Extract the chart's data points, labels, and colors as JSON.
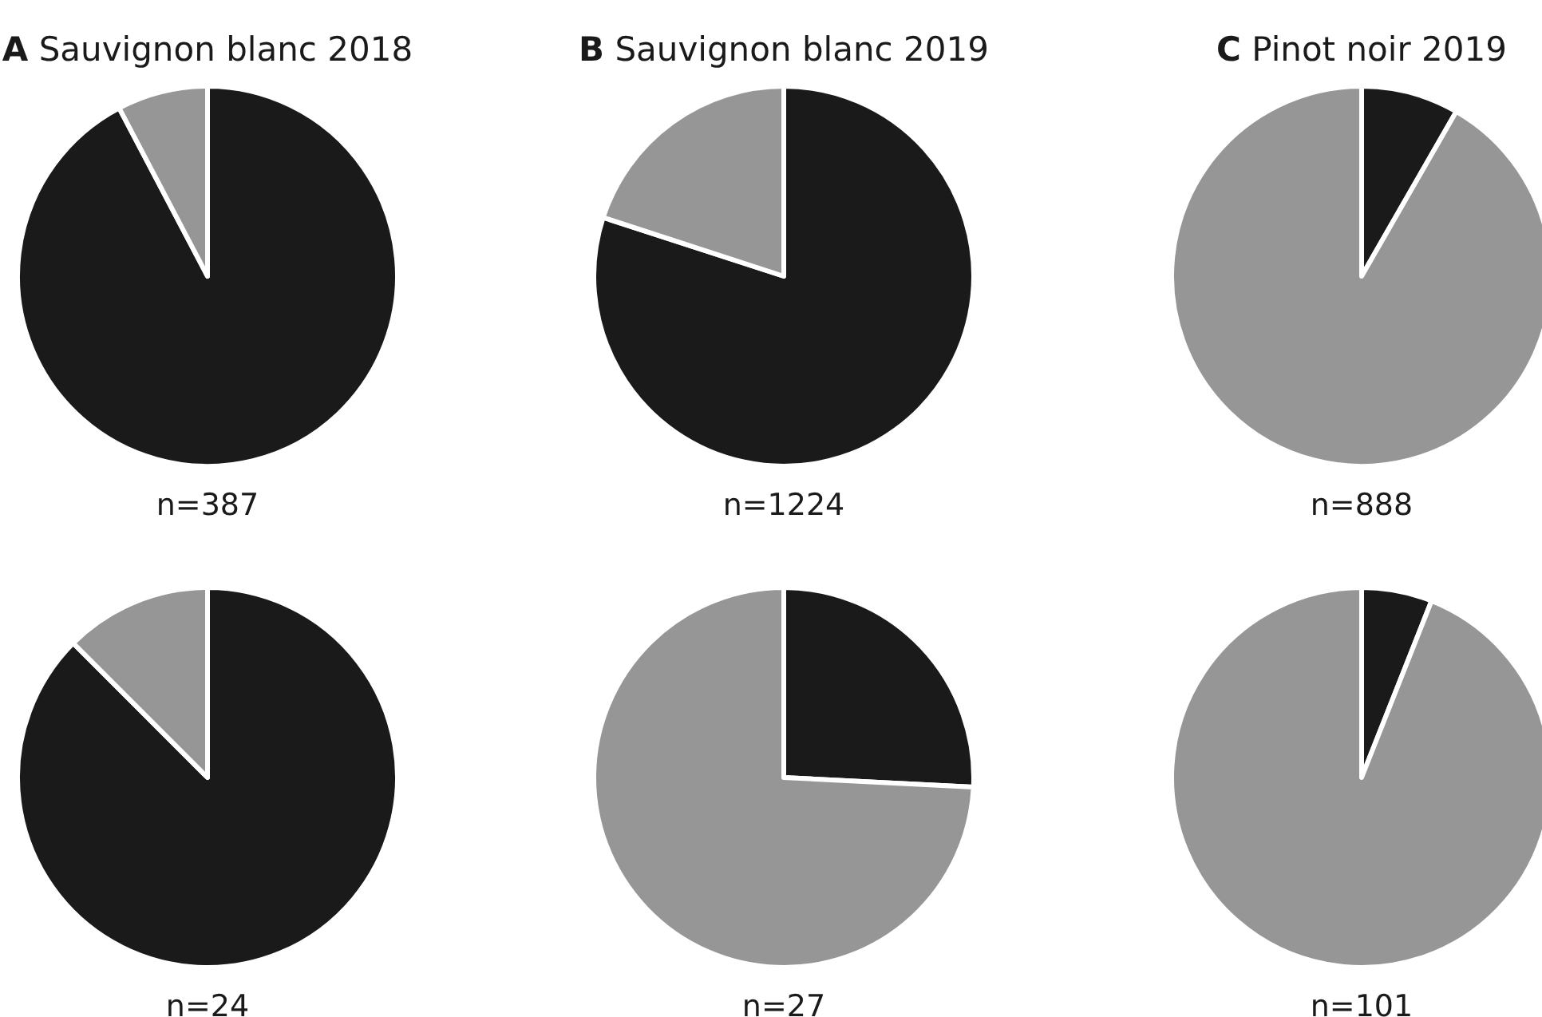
{
  "chart_data": [
    {
      "type": "pie",
      "title": "A Sauvignon blanc 2018",
      "categories": [
        null,
        null
      ],
      "values": [
        92.3,
        7.7
      ],
      "colors": [
        "#1a1a1a",
        "#969696"
      ],
      "xlabel": "n=387"
    },
    {
      "type": "pie",
      "title": "B Sauvignon blanc 2019",
      "categories": [
        null,
        null
      ],
      "values": [
        80,
        20
      ],
      "colors": [
        "#1a1a1a",
        "#969696"
      ],
      "xlabel": "n=1224"
    },
    {
      "type": "pie",
      "title": "C Pinot noir 2019",
      "categories": [
        null,
        null
      ],
      "values": [
        8.3,
        91.7
      ],
      "colors": [
        "#1a1a1a",
        "#969696"
      ],
      "xlabel": "n=888"
    },
    {
      "type": "pie",
      "categories": [
        null,
        null
      ],
      "values": [
        87.5,
        12.5
      ],
      "colors": [
        "#1a1a1a",
        "#969696"
      ],
      "xlabel": "n=24"
    },
    {
      "type": "pie",
      "categories": [
        null,
        null
      ],
      "values": [
        25.8,
        74.2
      ],
      "colors": [
        "#1a1a1a",
        "#969696"
      ],
      "xlabel": "n=27"
    },
    {
      "type": "pie",
      "categories": [
        null,
        null
      ],
      "values": [
        6,
        94
      ],
      "colors": [
        "#1a1a1a",
        "#969696"
      ],
      "xlabel": "n=101"
    }
  ]
}
